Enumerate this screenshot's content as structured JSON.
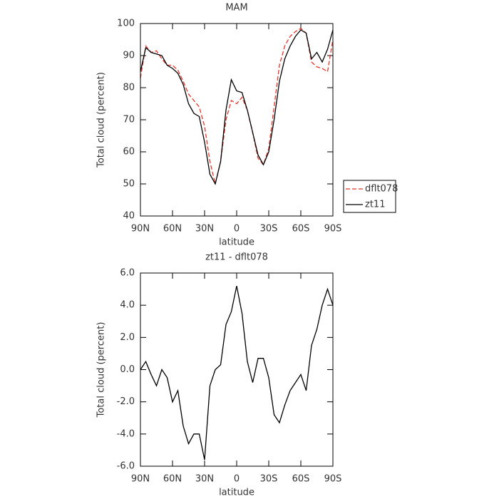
{
  "chart_data": [
    {
      "type": "line",
      "title": "MAM",
      "x_label": "latitude",
      "y_label": "Total cloud (percent)",
      "x": [
        90,
        85,
        80,
        75,
        70,
        65,
        60,
        55,
        50,
        45,
        40,
        35,
        30,
        25,
        20,
        15,
        10,
        5,
        0,
        -5,
        -10,
        -15,
        -20,
        -25,
        -30,
        -35,
        -40,
        -45,
        -50,
        -55,
        -60,
        -65,
        -70,
        -75,
        -80,
        -85,
        -90
      ],
      "series": [
        {
          "name": "dflt078",
          "color": "#e8332a",
          "style": "dashed",
          "values": [
            83,
            93,
            91,
            91.5,
            89,
            87,
            87,
            85.5,
            82,
            78,
            76,
            74,
            68,
            57,
            50,
            57,
            70,
            76,
            75,
            77,
            73,
            66,
            58,
            56,
            61,
            74,
            87,
            93,
            96,
            97.5,
            98.5,
            97,
            88,
            86.5,
            86,
            85,
            95
          ]
        },
        {
          "name": "zt11",
          "color": "#000000",
          "style": "solid",
          "values": [
            85,
            92.5,
            91,
            90.5,
            90,
            87,
            86,
            84.5,
            81,
            75,
            72,
            71,
            63,
            53,
            50,
            57,
            73,
            82.5,
            79,
            78.5,
            73,
            66,
            59,
            56,
            60,
            70,
            82,
            89,
            93,
            96,
            98,
            97,
            89,
            91,
            88,
            92,
            98
          ]
        }
      ],
      "xlim": [
        90,
        -90
      ],
      "xticks": [
        {
          "value": 90,
          "label": "90N"
        },
        {
          "value": 60,
          "label": "60N"
        },
        {
          "value": 30,
          "label": "30N"
        },
        0,
        {
          "value": -30,
          "label": "30S"
        },
        {
          "value": -60,
          "label": "60S"
        },
        {
          "value": -90,
          "label": "90S"
        }
      ],
      "ylim": [
        40,
        100
      ],
      "yticks": [
        40,
        50,
        60,
        70,
        80,
        90,
        100
      ],
      "legend": "right"
    },
    {
      "type": "line",
      "title": "zt11 - dflt078",
      "x_label": "latitude",
      "y_label": "Total cloud (percent)",
      "x": [
        90,
        85,
        80,
        75,
        70,
        65,
        60,
        55,
        50,
        45,
        40,
        35,
        30,
        25,
        20,
        15,
        10,
        5,
        0,
        -5,
        -10,
        -15,
        -20,
        -25,
        -30,
        -35,
        -40,
        -45,
        -50,
        -55,
        -60,
        -65,
        -70,
        -75,
        -80,
        -85,
        -90
      ],
      "series": [
        {
          "name": "zt11 - dflt078",
          "color": "#000000",
          "style": "solid",
          "values": [
            0,
            0.5,
            -0.3,
            -1,
            0,
            -0.5,
            -2,
            -1.3,
            -3.5,
            -4.6,
            -4,
            -4,
            -5.6,
            -1,
            0,
            0.3,
            2.8,
            3.6,
            5.2,
            3.5,
            0.5,
            -0.8,
            0.7,
            0.7,
            -0.5,
            -2.8,
            -3.3,
            -2.2,
            -1.3,
            -0.8,
            -0.3,
            -1.3,
            1.5,
            2.5,
            4,
            5,
            4
          ]
        }
      ],
      "xlim": [
        90,
        -90
      ],
      "xticks": [
        {
          "value": 90,
          "label": "90N"
        },
        {
          "value": 60,
          "label": "60N"
        },
        {
          "value": 30,
          "label": "30N"
        },
        0,
        {
          "value": -30,
          "label": "30S"
        },
        {
          "value": -60,
          "label": "60S"
        },
        {
          "value": -90,
          "label": "90S"
        }
      ],
      "ylim": [
        -6,
        6
      ],
      "yticks": [
        {
          "value": -6,
          "label": "-6.0"
        },
        {
          "value": -4,
          "label": "-4.0"
        },
        {
          "value": -2,
          "label": "-2.0"
        },
        {
          "value": 0,
          "label": "0.0"
        },
        {
          "value": 2,
          "label": "2.0"
        },
        {
          "value": 4,
          "label": "4.0"
        },
        {
          "value": 6,
          "label": "6.0"
        }
      ]
    }
  ]
}
